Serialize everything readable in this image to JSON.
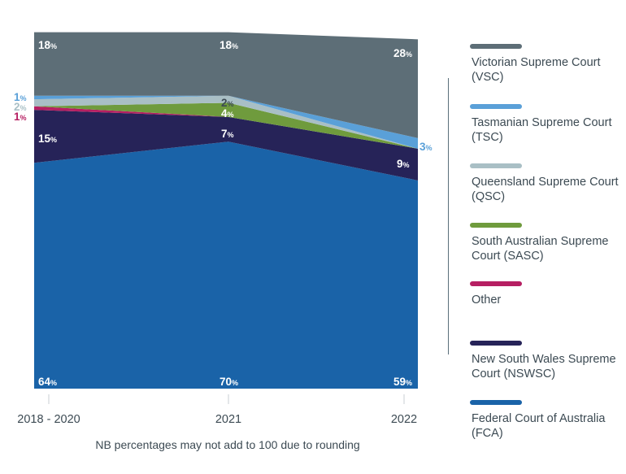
{
  "chart_data": {
    "type": "area",
    "stacked": true,
    "categories": [
      "2018 - 2020",
      "2021",
      "2022"
    ],
    "series": [
      {
        "name": "Federal Court of Australia (FCA)",
        "values": [
          64,
          70,
          59
        ],
        "labels": [
          "64%",
          "70%",
          "59%"
        ],
        "color": "#1a63a8"
      },
      {
        "name": "New South Wales Supreme Court (NSWSC)",
        "values": [
          15,
          7,
          9
        ],
        "labels": [
          "15%",
          "7%",
          "9%"
        ],
        "color": "#262358"
      },
      {
        "name": "Other",
        "values": [
          1,
          0,
          0
        ],
        "labels": [
          "1%",
          "",
          ""
        ],
        "color": "#b61f62"
      },
      {
        "name": "South Australian Supreme Court (SASC)",
        "values": [
          0,
          4,
          0
        ],
        "labels": [
          "",
          "4%",
          ""
        ],
        "color": "#6f9b3d"
      },
      {
        "name": "Queensland Supreme Court (QSC)",
        "values": [
          2,
          2,
          0
        ],
        "labels": [
          "2%",
          "2%",
          ""
        ],
        "color": "#a9bfc5"
      },
      {
        "name": "Tasmanian Supreme Court (TSC)",
        "values": [
          1,
          0,
          3
        ],
        "labels": [
          "1%",
          "",
          "3%"
        ],
        "color": "#5aa0d8"
      },
      {
        "name": "Victorian Supreme Court (VSC)",
        "values": [
          18,
          18,
          28
        ],
        "labels": [
          "18%",
          "18%",
          "28%"
        ],
        "color": "#5d6e77"
      }
    ],
    "ylim": [
      0,
      100
    ],
    "grid": false,
    "legend_position": "right",
    "note": "NB percentages may not add to 100 due to rounding"
  },
  "legend": [
    {
      "label": "Victorian Supreme Court (VSC)",
      "color": "#5d6e77"
    },
    {
      "label": "Tasmanian Supreme Court (TSC)",
      "color": "#5aa0d8"
    },
    {
      "label": "Queensland Supreme Court (QSC)",
      "color": "#a9bfc5"
    },
    {
      "label": "South Australian Supreme Court (SASC)",
      "color": "#6f9b3d"
    },
    {
      "label": "Other",
      "color": "#b61f62"
    },
    {
      "label": "New South Wales Supreme Court (NSWSC)",
      "color": "#262358"
    },
    {
      "label": "Federal Court of Australia (FCA)",
      "color": "#1a63a8"
    }
  ]
}
